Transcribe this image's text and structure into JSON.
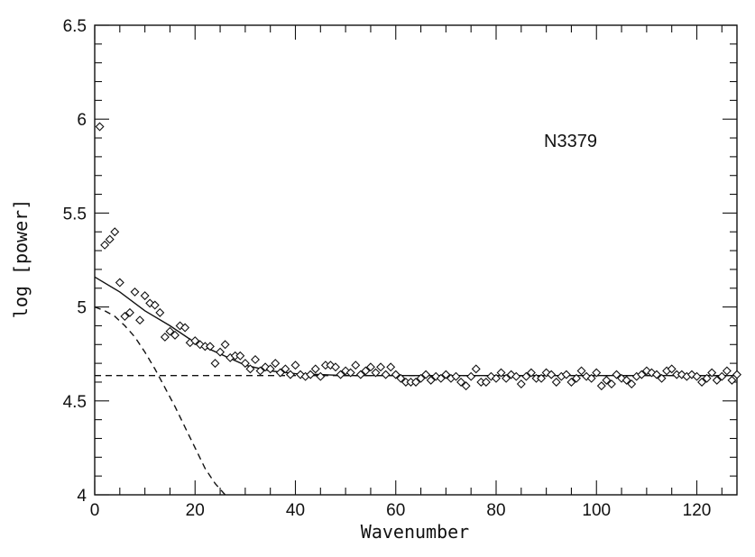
{
  "chart_data": {
    "type": "scatter",
    "title": "",
    "annotation": "N3379",
    "xlabel": "Wavenumber",
    "ylabel": "log [power]",
    "xlim": [
      0,
      128
    ],
    "ylim": [
      4,
      6.5
    ],
    "x_ticks": [
      0,
      20,
      40,
      60,
      80,
      100,
      120
    ],
    "y_ticks": [
      4,
      4.5,
      5,
      5.5,
      6,
      6.5
    ],
    "grid": false,
    "series": [
      {
        "marker": "open-diamond",
        "x": [
          1,
          2,
          3,
          4,
          5,
          6,
          7,
          8,
          9,
          10,
          11,
          12,
          13,
          14,
          15,
          16,
          17,
          18,
          19,
          20,
          21,
          22,
          23,
          24,
          25,
          26,
          27,
          28,
          29,
          30,
          31,
          32,
          33,
          34,
          35,
          36,
          37,
          38,
          39,
          40,
          41,
          42,
          43,
          44,
          45,
          46,
          47,
          48,
          49,
          50,
          51,
          52,
          53,
          54,
          55,
          56,
          57,
          58,
          59,
          60,
          61,
          62,
          63,
          64,
          65,
          66,
          67,
          68,
          69,
          70,
          71,
          72,
          73,
          74,
          75,
          76,
          77,
          78,
          79,
          80,
          81,
          82,
          83,
          84,
          85,
          86,
          87,
          88,
          89,
          90,
          91,
          92,
          93,
          94,
          95,
          96,
          97,
          98,
          99,
          100,
          101,
          102,
          103,
          104,
          105,
          106,
          107,
          108,
          109,
          110,
          111,
          112,
          113,
          114,
          115,
          116,
          117,
          118,
          119,
          120,
          121,
          122,
          123,
          124,
          125,
          126,
          127,
          128
        ],
        "y": [
          5.96,
          5.33,
          5.36,
          5.4,
          5.13,
          4.95,
          4.97,
          5.08,
          4.93,
          5.06,
          5.02,
          5.01,
          4.97,
          4.84,
          4.87,
          4.85,
          4.9,
          4.89,
          4.81,
          4.82,
          4.8,
          4.79,
          4.79,
          4.7,
          4.76,
          4.8,
          4.73,
          4.74,
          4.74,
          4.7,
          4.67,
          4.72,
          4.66,
          4.68,
          4.67,
          4.7,
          4.65,
          4.67,
          4.64,
          4.69,
          4.64,
          4.63,
          4.64,
          4.67,
          4.63,
          4.69,
          4.69,
          4.68,
          4.64,
          4.66,
          4.65,
          4.69,
          4.64,
          4.66,
          4.68,
          4.65,
          4.68,
          4.64,
          4.68,
          4.64,
          4.62,
          4.6,
          4.6,
          4.6,
          4.62,
          4.64,
          4.61,
          4.63,
          4.62,
          4.64,
          4.62,
          4.63,
          4.6,
          4.58,
          4.63,
          4.67,
          4.6,
          4.6,
          4.63,
          4.62,
          4.65,
          4.62,
          4.64,
          4.63,
          4.59,
          4.63,
          4.65,
          4.62,
          4.62,
          4.65,
          4.64,
          4.6,
          4.63,
          4.64,
          4.6,
          4.62,
          4.66,
          4.63,
          4.62,
          4.65,
          4.58,
          4.61,
          4.59,
          4.64,
          4.62,
          4.61,
          4.59,
          4.63,
          4.64,
          4.66,
          4.65,
          4.64,
          4.62,
          4.66,
          4.67,
          4.64,
          4.64,
          4.63,
          4.64,
          4.63,
          4.6,
          4.62,
          4.65,
          4.61,
          4.63,
          4.66,
          4.61,
          4.64
        ]
      },
      {
        "style": "solid-line",
        "x": [
          0,
          5,
          10,
          15,
          20,
          25,
          30,
          35,
          40,
          45,
          50,
          60,
          70,
          80,
          90,
          100,
          110,
          120,
          128
        ],
        "y": [
          5.16,
          5.08,
          4.98,
          4.9,
          4.81,
          4.75,
          4.69,
          4.66,
          4.645,
          4.64,
          4.635,
          4.635,
          4.635,
          4.635,
          4.635,
          4.635,
          4.635,
          4.635,
          4.635
        ]
      },
      {
        "style": "dashed-line",
        "x": [
          0,
          128
        ],
        "y": [
          4.635,
          4.635
        ]
      },
      {
        "style": "dashed-line",
        "x": [
          0,
          2,
          4,
          6,
          8,
          10,
          12,
          14,
          16,
          18,
          20,
          22,
          24,
          26
        ],
        "y": [
          5.0,
          4.98,
          4.95,
          4.9,
          4.84,
          4.76,
          4.67,
          4.57,
          4.47,
          4.36,
          4.25,
          4.14,
          4.06,
          4.0
        ]
      }
    ]
  }
}
